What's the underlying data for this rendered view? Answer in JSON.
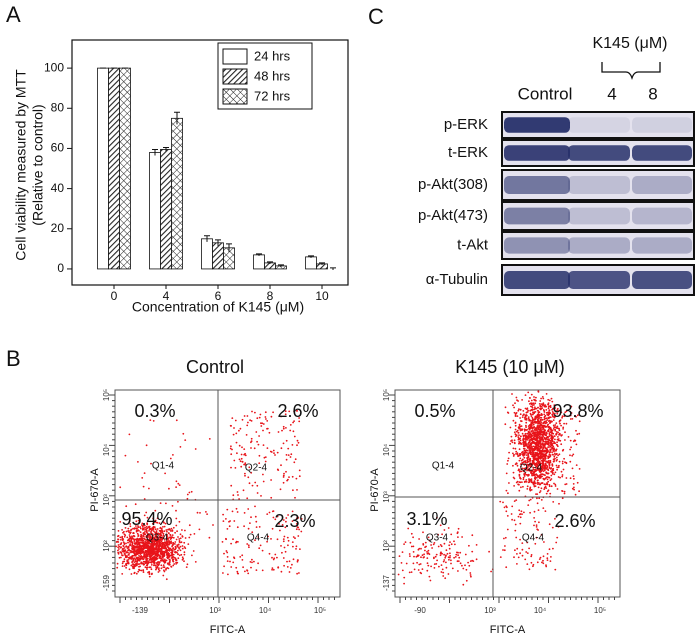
{
  "panels": {
    "a": "A",
    "b": "B",
    "c": "C"
  },
  "chart_data": {
    "type": "bar",
    "y_label": [
      "Cell viability measured by MTT",
      "(Relative to control)"
    ],
    "x_label": "Concentration of K145 (μM)",
    "categories": [
      "0",
      "4",
      "6",
      "8",
      "10"
    ],
    "series": [
      {
        "name": "24 hrs",
        "color": "#ffffff",
        "pattern": "none",
        "values": [
          100,
          58,
          15,
          7,
          6
        ],
        "errors": [
          0,
          1.5,
          1.5,
          0.5,
          0.5
        ]
      },
      {
        "name": "48 hrs",
        "color": "#ffffff",
        "pattern": "diagonal",
        "values": [
          100,
          59.5,
          13,
          3,
          2.5
        ],
        "errors": [
          0,
          1,
          1.5,
          0.5,
          0.5
        ]
      },
      {
        "name": "72 hrs",
        "color": "#ffffff",
        "pattern": "crosshatch",
        "values": [
          100,
          75,
          10.5,
          1.5,
          0
        ],
        "errors": [
          0,
          3,
          2,
          0.5,
          0.5
        ]
      }
    ],
    "ylim": [
      -8,
      114
    ],
    "yticks": [
      0,
      20,
      40,
      60,
      80,
      100
    ],
    "legend": "upper right"
  },
  "blot": {
    "treatment": "K145 (μM)",
    "columns": [
      "Control",
      "4",
      "8"
    ],
    "rows": [
      "p-ERK",
      "t-ERK",
      "p-Akt(308)",
      "p-Akt(473)",
      "t-Akt",
      "α-Tubulin"
    ]
  },
  "flow": [
    {
      "title": "Control",
      "y_label": "PI-670-A",
      "x_label": "FITC-A",
      "percentages": [
        "0.3%",
        "2.6%",
        "95.4%",
        "2.3%"
      ],
      "quadrants": [
        "Q1-4",
        "Q2-4",
        "Q3-4",
        "Q4-4"
      ],
      "yticks": [
        "10⁵",
        "10⁴",
        "10³",
        "10²",
        "-159"
      ],
      "xticks": [
        "-139",
        "10³",
        "10⁴",
        "10⁵"
      ]
    },
    {
      "title": "K145 (10 μM)",
      "y_label": "PI-670-A",
      "x_label": "FITC-A",
      "percentages": [
        "0.5%",
        "93.8%",
        "3.1%",
        "2.6%"
      ],
      "quadrants": [
        "Q1-4",
        "Q2-4",
        "Q3-4",
        "Q4-4"
      ],
      "yticks": [
        "10⁵",
        "10⁴",
        "10³",
        "10²",
        "-137"
      ],
      "xticks": [
        "-90",
        "10³",
        "10⁴",
        "10⁵"
      ]
    }
  ]
}
